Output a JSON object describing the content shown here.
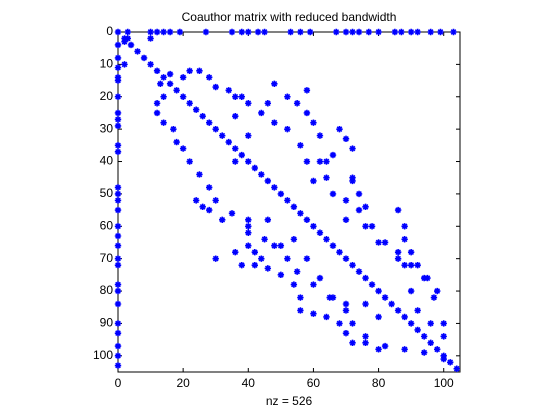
{
  "chart_data": {
    "type": "scatter",
    "title": "Coauthor matrix with reduced bandwidth",
    "xlabel": "nz = 526",
    "marker": "*",
    "color": "#0000ff",
    "xlim": [
      0,
      105
    ],
    "ylim": [
      0,
      105
    ],
    "y_reversed": true,
    "xticks": [
      0,
      20,
      40,
      60,
      80,
      100
    ],
    "yticks": [
      0,
      10,
      20,
      30,
      40,
      50,
      60,
      70,
      80,
      90,
      100
    ],
    "x": [
      0,
      2,
      4,
      6,
      8,
      10,
      12,
      14,
      16,
      18,
      20,
      22,
      24,
      26,
      28,
      30,
      32,
      34,
      36,
      38,
      40,
      42,
      44,
      46,
      48,
      50,
      52,
      54,
      56,
      58,
      60,
      62,
      64,
      66,
      68,
      70,
      72,
      74,
      76,
      78,
      80,
      82,
      84,
      86,
      88,
      90,
      92,
      94,
      96,
      98,
      100,
      102,
      104,
      3,
      10,
      12,
      14,
      16,
      19,
      27,
      35,
      38,
      40,
      43,
      45,
      53,
      56,
      59,
      67,
      70,
      72,
      74,
      77,
      80,
      85,
      87,
      90,
      92,
      96,
      99,
      103,
      0,
      0,
      0,
      0,
      0,
      0,
      0,
      0,
      0,
      0,
      0,
      0,
      0,
      0,
      0,
      0,
      0,
      0,
      0,
      0,
      0,
      0,
      0,
      0,
      0,
      0,
      0,
      0,
      2,
      2,
      3,
      10,
      16,
      20,
      22,
      25,
      28,
      30,
      34,
      36,
      40,
      44,
      48,
      52,
      56,
      58,
      62,
      64,
      66,
      70,
      74,
      78,
      82,
      86,
      90,
      94,
      98,
      55,
      58,
      60,
      62,
      66,
      68,
      70,
      72,
      72,
      74,
      76,
      76,
      80,
      86,
      88,
      90,
      92,
      96,
      100,
      86,
      88,
      88,
      90,
      92,
      95,
      97,
      100,
      38,
      46,
      48,
      52,
      58,
      36,
      40,
      60,
      64,
      70,
      72,
      13,
      14,
      12,
      12,
      14,
      17,
      18,
      20,
      22,
      25,
      28,
      30,
      35,
      40,
      40,
      45,
      50,
      52,
      55,
      60,
      65,
      70,
      72,
      76,
      80,
      24,
      26,
      28,
      32,
      36,
      38,
      42,
      46,
      50,
      54,
      56,
      56,
      60,
      64,
      68,
      70,
      72,
      76,
      82,
      88,
      94,
      100,
      40,
      42,
      44,
      48,
      30,
      58,
      62,
      66,
      70,
      76,
      80,
      36,
      46,
      40,
      54
    ],
    "y": [
      0,
      2,
      4,
      6,
      8,
      10,
      12,
      14,
      16,
      18,
      20,
      22,
      24,
      26,
      28,
      30,
      32,
      34,
      36,
      38,
      40,
      42,
      44,
      46,
      48,
      50,
      52,
      54,
      56,
      58,
      60,
      62,
      64,
      66,
      68,
      70,
      72,
      74,
      76,
      78,
      80,
      82,
      84,
      86,
      88,
      90,
      92,
      94,
      96,
      98,
      100,
      102,
      104,
      0,
      0,
      0,
      0,
      0,
      0,
      0,
      0,
      0,
      0,
      0,
      0,
      0,
      0,
      0,
      0,
      0,
      0,
      0,
      0,
      0,
      0,
      0,
      0,
      0,
      0,
      0,
      0,
      4,
      8,
      11,
      14,
      15,
      20,
      25,
      27,
      29,
      35,
      37,
      48,
      50,
      52,
      55,
      60,
      63,
      66,
      70,
      72,
      78,
      80,
      84,
      90,
      93,
      97,
      100,
      103,
      3,
      10,
      2,
      2,
      13,
      14,
      12,
      12,
      14,
      17,
      18,
      20,
      22,
      25,
      28,
      30,
      35,
      40,
      40,
      45,
      50,
      52,
      55,
      60,
      65,
      70,
      72,
      76,
      80,
      22,
      25,
      28,
      32,
      38,
      30,
      33,
      36,
      45,
      50,
      54,
      60,
      65,
      68,
      72,
      80,
      86,
      90,
      94,
      55,
      60,
      64,
      68,
      72,
      76,
      82,
      90,
      20,
      22,
      16,
      20,
      18,
      26,
      32,
      46,
      40,
      58,
      46,
      16,
      20,
      22,
      25,
      28,
      30,
      34,
      36,
      40,
      44,
      48,
      52,
      56,
      58,
      62,
      64,
      66,
      70,
      74,
      78,
      82,
      86,
      90,
      94,
      98,
      52,
      54,
      55,
      58,
      68,
      72,
      72,
      73,
      75,
      78,
      82,
      86,
      87,
      88,
      90,
      93,
      96,
      96,
      97,
      98,
      99,
      101,
      66,
      68,
      70,
      66,
      70,
      70,
      76,
      82,
      84,
      84,
      88,
      40,
      58,
      60,
      64
    ]
  }
}
